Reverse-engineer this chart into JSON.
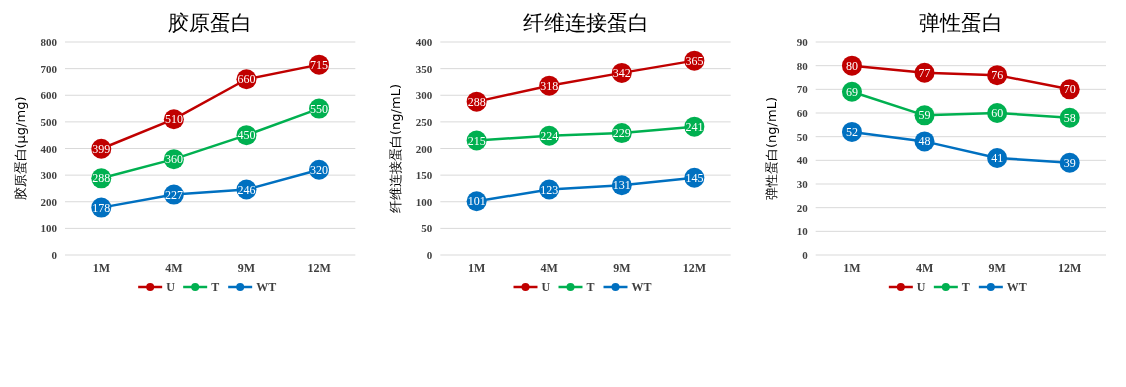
{
  "chart_data": [
    {
      "type": "line",
      "title": "胶原蛋白",
      "ylabel": "胶原蛋白(μg/mg)",
      "categories": [
        "1M",
        "4M",
        "9M",
        "12M"
      ],
      "ylim": [
        0,
        800
      ],
      "yticks": [
        0,
        100,
        200,
        300,
        400,
        500,
        600,
        700,
        800
      ],
      "grid": "y",
      "legend": "bottom",
      "marker": "circle",
      "data_labels": true,
      "series": [
        {
          "name": "U",
          "color": "#c00000",
          "values": [
            399,
            510,
            660,
            715
          ]
        },
        {
          "name": "T",
          "color": "#00b050",
          "values": [
            288,
            360,
            450,
            550
          ]
        },
        {
          "name": "WT",
          "color": "#0070c0",
          "values": [
            178,
            227,
            246,
            320
          ]
        }
      ]
    },
    {
      "type": "line",
      "title": "纤维连接蛋白",
      "ylabel": "纤维连接蛋白(ng/mL)",
      "categories": [
        "1M",
        "4M",
        "9M",
        "12M"
      ],
      "ylim": [
        0,
        400
      ],
      "yticks": [
        0,
        50,
        100,
        150,
        200,
        250,
        300,
        350,
        400
      ],
      "grid": "y",
      "legend": "bottom",
      "marker": "circle",
      "data_labels": true,
      "series": [
        {
          "name": "U",
          "color": "#c00000",
          "values": [
            288,
            318,
            342,
            365
          ]
        },
        {
          "name": "T",
          "color": "#00b050",
          "values": [
            215,
            224,
            229,
            241
          ]
        },
        {
          "name": "WT",
          "color": "#0070c0",
          "values": [
            101,
            123,
            131,
            145
          ]
        }
      ]
    },
    {
      "type": "line",
      "title": "弹性蛋白",
      "ylabel": "弹性蛋白(ng/mL)",
      "categories": [
        "1M",
        "4M",
        "9M",
        "12M"
      ],
      "ylim": [
        0,
        90
      ],
      "yticks": [
        0,
        10,
        20,
        30,
        40,
        50,
        60,
        70,
        80,
        90
      ],
      "grid": "y",
      "legend": "bottom",
      "marker": "circle",
      "data_labels": true,
      "series": [
        {
          "name": "U",
          "color": "#c00000",
          "values": [
            80,
            77,
            76,
            70
          ]
        },
        {
          "name": "T",
          "color": "#00b050",
          "values": [
            69,
            59,
            60,
            58
          ]
        },
        {
          "name": "WT",
          "color": "#0070c0",
          "values": [
            52,
            48,
            41,
            39
          ]
        }
      ]
    }
  ]
}
